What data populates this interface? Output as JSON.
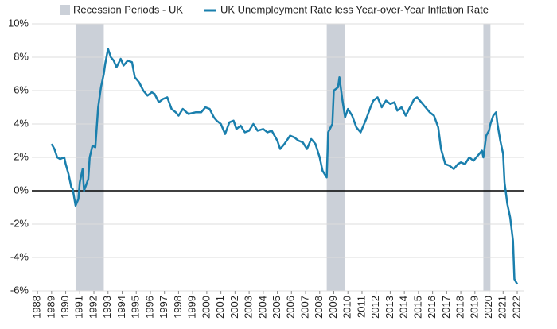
{
  "chart_data": {
    "type": "line",
    "legend": "top",
    "grid": true,
    "recessions": {
      "name": "Recession Periods - UK",
      "color": "#cbd0d8",
      "periods": [
        [
          1990.7,
          1992.7
        ],
        [
          2008.5,
          2009.8
        ],
        [
          2019.6,
          2020.1
        ]
      ]
    },
    "x": [
      1989.0,
      1989.2,
      1989.4,
      1989.6,
      1989.9,
      1990.0,
      1990.2,
      1990.4,
      1990.5,
      1990.7,
      1990.9,
      1991.0,
      1991.2,
      1991.3,
      1991.6,
      1991.7,
      1991.9,
      1992.1,
      1992.3,
      1992.5,
      1992.7,
      1992.8,
      1993.0,
      1993.2,
      1993.4,
      1993.6,
      1993.9,
      1994.1,
      1994.4,
      1994.7,
      1994.9,
      1995.2,
      1995.5,
      1995.8,
      1996.1,
      1996.3,
      1996.6,
      1996.9,
      1997.2,
      1997.5,
      1997.8,
      1998.0,
      1998.3,
      1998.7,
      1999.2,
      1999.6,
      1999.9,
      2000.2,
      2000.5,
      2000.7,
      2001.0,
      2001.3,
      2001.6,
      2001.9,
      2002.1,
      2002.4,
      2002.7,
      2003.0,
      2003.3,
      2003.6,
      2004.0,
      2004.3,
      2004.6,
      2005.0,
      2005.2,
      2005.5,
      2005.9,
      2006.2,
      2006.5,
      2006.8,
      2007.1,
      2007.4,
      2007.7,
      2008.0,
      2008.2,
      2008.5,
      2008.6,
      2008.9,
      2009.0,
      2009.3,
      2009.4,
      2009.6,
      2009.8,
      2010.0,
      2010.3,
      2010.6,
      2010.9,
      2011.3,
      2011.6,
      2011.8,
      2012.1,
      2012.4,
      2012.7,
      2013.0,
      2013.3,
      2013.5,
      2013.8,
      2014.1,
      2014.4,
      2014.7,
      2014.9,
      2015.2,
      2015.5,
      2015.8,
      2016.1,
      2016.4,
      2016.6,
      2016.9,
      2017.2,
      2017.5,
      2017.8,
      2018.0,
      2018.3,
      2018.6,
      2018.9,
      2019.2,
      2019.5,
      2019.6,
      2019.8,
      2020.0,
      2020.1,
      2020.3,
      2020.5,
      2020.6,
      2020.8,
      2021.0,
      2021.1,
      2021.3,
      2021.5,
      2021.7,
      2021.8,
      2022.0
    ],
    "series": [
      {
        "name": "UK Unemployment Rate less Year-over-Year Inflation Rate",
        "color": "#1a7fad",
        "values": [
          2.8,
          2.5,
          2.0,
          1.9,
          2.0,
          1.6,
          1.0,
          0.2,
          0.1,
          -0.9,
          -0.5,
          0.5,
          1.3,
          0.0,
          0.7,
          2.0,
          2.7,
          2.6,
          5.0,
          6.2,
          7.0,
          7.6,
          8.5,
          8.0,
          7.8,
          7.4,
          7.9,
          7.5,
          7.8,
          7.7,
          6.8,
          6.5,
          6.0,
          5.7,
          5.9,
          5.8,
          5.3,
          5.5,
          5.6,
          4.9,
          4.7,
          4.5,
          4.9,
          4.6,
          4.7,
          4.7,
          5.0,
          4.9,
          4.4,
          4.2,
          4.0,
          3.4,
          4.1,
          4.2,
          3.7,
          3.9,
          3.5,
          3.6,
          4.0,
          3.6,
          3.7,
          3.5,
          3.6,
          3.0,
          2.5,
          2.8,
          3.3,
          3.2,
          3.0,
          2.9,
          2.5,
          3.1,
          2.8,
          2.0,
          1.2,
          0.8,
          3.5,
          4.0,
          6.0,
          6.2,
          6.8,
          5.5,
          4.4,
          4.9,
          4.5,
          3.8,
          3.5,
          4.3,
          5.0,
          5.4,
          5.6,
          5.0,
          5.4,
          5.2,
          5.3,
          4.8,
          5.0,
          4.5,
          5.0,
          5.5,
          5.6,
          5.3,
          5.0,
          4.7,
          4.5,
          3.8,
          2.5,
          1.6,
          1.5,
          1.3,
          1.6,
          1.7,
          1.6,
          2.0,
          1.8,
          2.1,
          2.4,
          2.0,
          3.3,
          3.6,
          4.0,
          4.5,
          4.7,
          4.0,
          3.0,
          2.2,
          0.5,
          -0.8,
          -1.6,
          -3.0,
          -5.3,
          -5.6
        ]
      }
    ],
    "xlim": [
      1987.6,
      2022.45
    ],
    "xticks": [
      1988,
      1989,
      1990,
      1991,
      1992,
      1993,
      1994,
      1995,
      1996,
      1997,
      1998,
      1999,
      2000,
      2001,
      2002,
      2003,
      2004,
      2005,
      2006,
      2007,
      2008,
      2009,
      2010,
      2011,
      2012,
      2013,
      2014,
      2015,
      2016,
      2017,
      2018,
      2019,
      2020,
      2021,
      2022
    ],
    "ylim": [
      -6,
      10
    ],
    "yticks": [
      {
        "value": -6,
        "label": "-6%"
      },
      {
        "value": -4,
        "label": "-4%"
      },
      {
        "value": -2,
        "label": "-2%"
      },
      {
        "value": 0,
        "label": "0%"
      },
      {
        "value": 2,
        "label": "2%"
      },
      {
        "value": 4,
        "label": "4%"
      },
      {
        "value": 6,
        "label": "6%"
      },
      {
        "value": 8,
        "label": "8%"
      },
      {
        "value": 10,
        "label": "10%"
      }
    ]
  }
}
